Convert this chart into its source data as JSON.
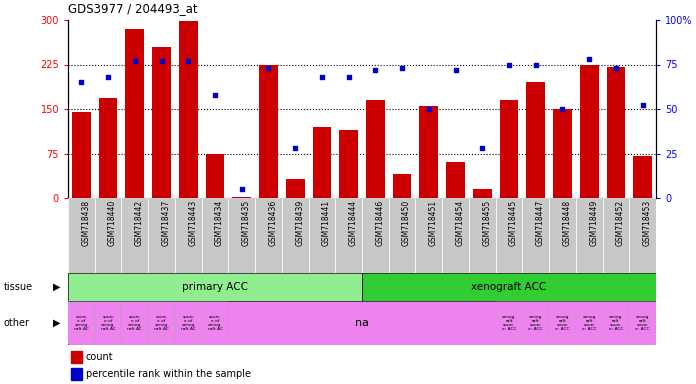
{
  "title": "GDS3977 / 204493_at",
  "samples": [
    "GSM718438",
    "GSM718440",
    "GSM718442",
    "GSM718437",
    "GSM718443",
    "GSM718434",
    "GSM718435",
    "GSM718436",
    "GSM718439",
    "GSM718441",
    "GSM718444",
    "GSM718446",
    "GSM718450",
    "GSM718451",
    "GSM718454",
    "GSM718455",
    "GSM718445",
    "GSM718447",
    "GSM718448",
    "GSM718449",
    "GSM718452",
    "GSM718453"
  ],
  "counts": [
    145,
    168,
    285,
    255,
    298,
    75,
    2,
    225,
    32,
    120,
    115,
    165,
    40,
    155,
    60,
    15,
    165,
    195,
    150,
    225,
    220,
    70
  ],
  "percentiles": [
    65,
    68,
    77,
    77,
    77,
    58,
    5,
    73,
    28,
    68,
    68,
    72,
    73,
    50,
    72,
    28,
    75,
    75,
    50,
    78,
    73,
    52
  ],
  "tissue_primary_count": 11,
  "tissue_xenograft_count": 11,
  "tissue_primary_color": "#90ee90",
  "tissue_xenograft_color": "#32cd32",
  "other_color": "#ee82ee",
  "bar_color": "#cc0000",
  "dot_color": "#0000cc",
  "left_ylim": [
    0,
    300
  ],
  "left_yticks": [
    0,
    75,
    150,
    225,
    300
  ],
  "right_ylim": [
    0,
    100
  ],
  "right_yticks": [
    0,
    25,
    50,
    75,
    100
  ],
  "right_yticklabels": [
    "0",
    "25",
    "50",
    "75",
    "100%"
  ],
  "tick_label_bg": "#c8c8c8",
  "left_label": "tissue",
  "left_label2": "other",
  "primary_label": "primary ACC",
  "xenograft_label": "xenograft ACC",
  "na_label": "na",
  "legend_count": "count",
  "legend_percentile": "percentile rank within the sample",
  "n_primary_text_cells": 6,
  "n_xenograft_text_cells": 6,
  "primary_text": "sourc\ne of\nxenog\nraft AC",
  "xenograft_text": "xenog\nraft\nsourc\ne: ACC"
}
